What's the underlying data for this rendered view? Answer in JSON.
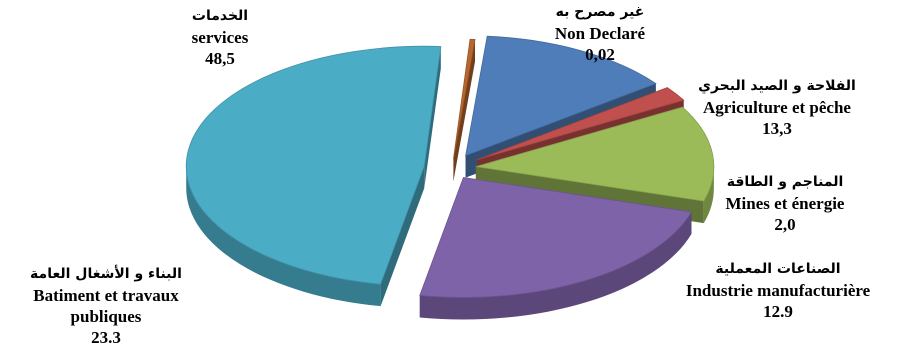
{
  "chart_data": {
    "type": "pie",
    "style": "3d-exploded",
    "categories": [
      {
        "ar": "غير مصرح به",
        "fr": "Non Declaré",
        "label": "0,02",
        "value": 0.02,
        "color": "#b8662e"
      },
      {
        "ar": "الفلاحة و الصيد البحري",
        "fr": "Agriculture et pêche",
        "label": "13,3",
        "value": 13.3,
        "color": "#4f7dba"
      },
      {
        "ar": "المناجم و الطاقة",
        "fr": "Mines et énergie",
        "label": "2,0",
        "value": 2.0,
        "color": "#c0504d"
      },
      {
        "ar": "الصناعات المعملية",
        "fr": "Industrie manufacturière",
        "label": "12.9",
        "value": 12.9,
        "color": "#9bbb59"
      },
      {
        "ar": "البناء و الأشغال العامة",
        "fr": "Batiment et travaux publiques",
        "label": "23.3",
        "value": 23.3,
        "color": "#7f63a8"
      },
      {
        "ar": "الخدمات",
        "fr": "services",
        "label": "48,5",
        "value": 48.5,
        "color": "#4bacc6"
      }
    ]
  }
}
